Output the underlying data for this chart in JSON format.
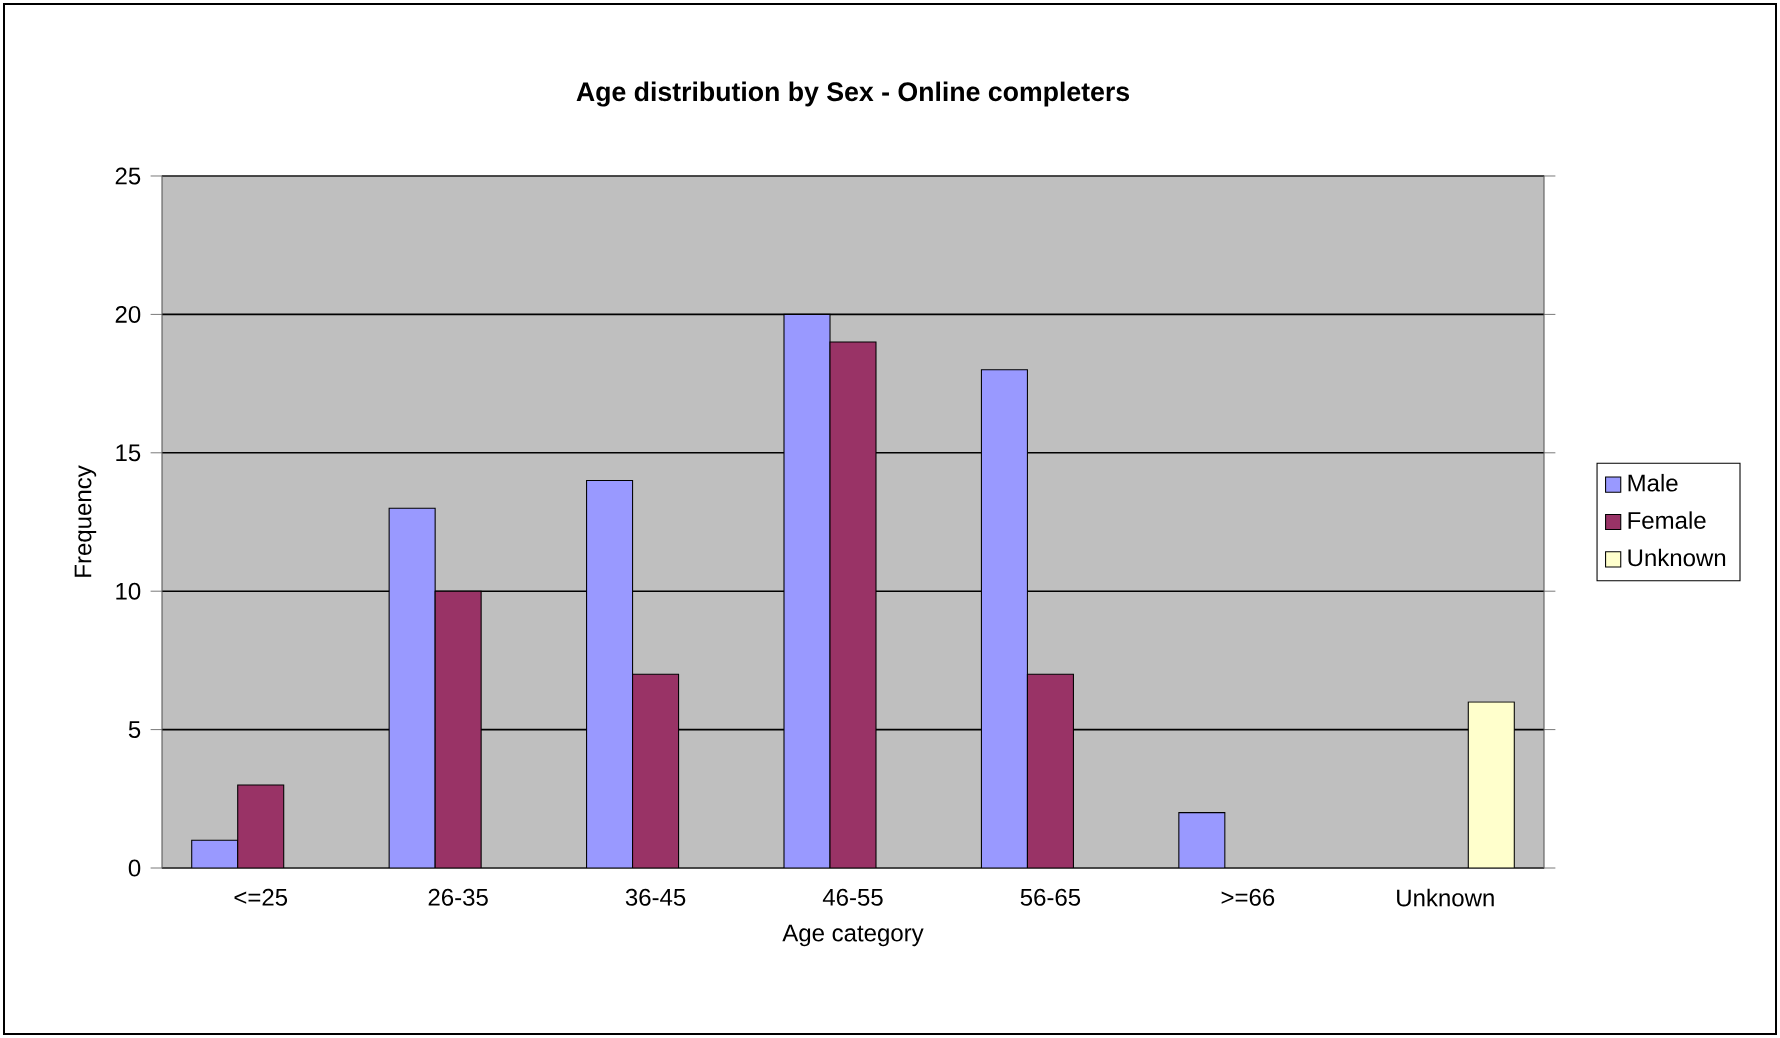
{
  "chart_data": {
    "type": "bar",
    "title": "Age distribution by Sex - Online completers",
    "xlabel": "Age category",
    "ylabel": "Frequency",
    "categories": [
      "<=25",
      "26-35",
      "36-45",
      "46-55",
      "56-65",
      ">=66",
      "Unknown"
    ],
    "series": [
      {
        "name": "Male",
        "color": "#9999ff",
        "values": [
          1,
          13,
          14,
          20,
          18,
          2,
          null
        ]
      },
      {
        "name": "Female",
        "color": "#993366",
        "values": [
          3,
          10,
          7,
          19,
          7,
          null,
          null
        ]
      },
      {
        "name": "Unknown",
        "color": "#ffffcc",
        "values": [
          null,
          null,
          null,
          null,
          null,
          null,
          6
        ]
      }
    ],
    "ylim": [
      0,
      25
    ],
    "yticks": [
      0,
      5,
      10,
      15,
      20,
      25
    ],
    "grid": "y",
    "legend": "right"
  }
}
